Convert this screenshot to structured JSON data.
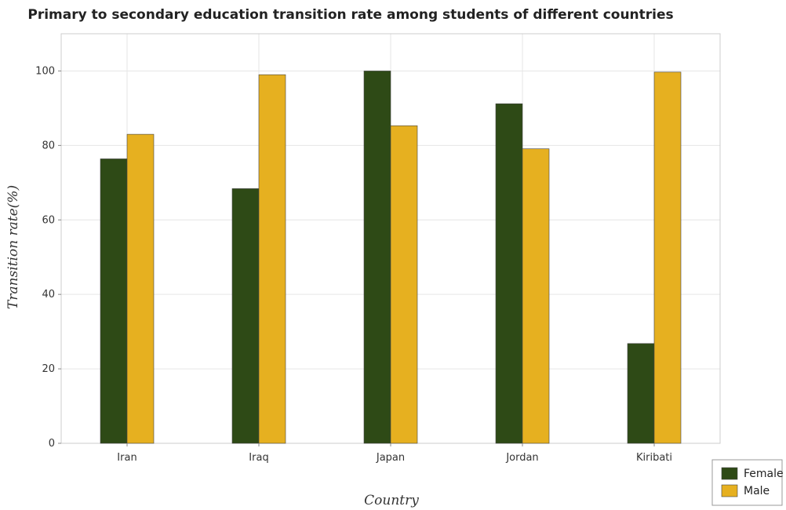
{
  "chart_data": {
    "type": "bar",
    "title": "Primary to secondary education transition rate among students of different countries",
    "xlabel": "Country",
    "ylabel": "Transition rate(%)",
    "categories": [
      "Iran",
      "Iraq",
      "Japan",
      "Jordan",
      "Kiribati"
    ],
    "series": [
      {
        "name": "Female",
        "color": "#2e4a16",
        "values": [
          76.4,
          68.4,
          100.0,
          91.2,
          26.8
        ]
      },
      {
        "name": "Male",
        "color": "#e6b020",
        "values": [
          83.0,
          99.0,
          85.3,
          79.1,
          99.7
        ]
      }
    ],
    "ylim": [
      0,
      110
    ],
    "yticks": [
      0,
      20,
      40,
      60,
      80,
      100
    ],
    "grid": true,
    "legend_position": "bottom-right"
  }
}
